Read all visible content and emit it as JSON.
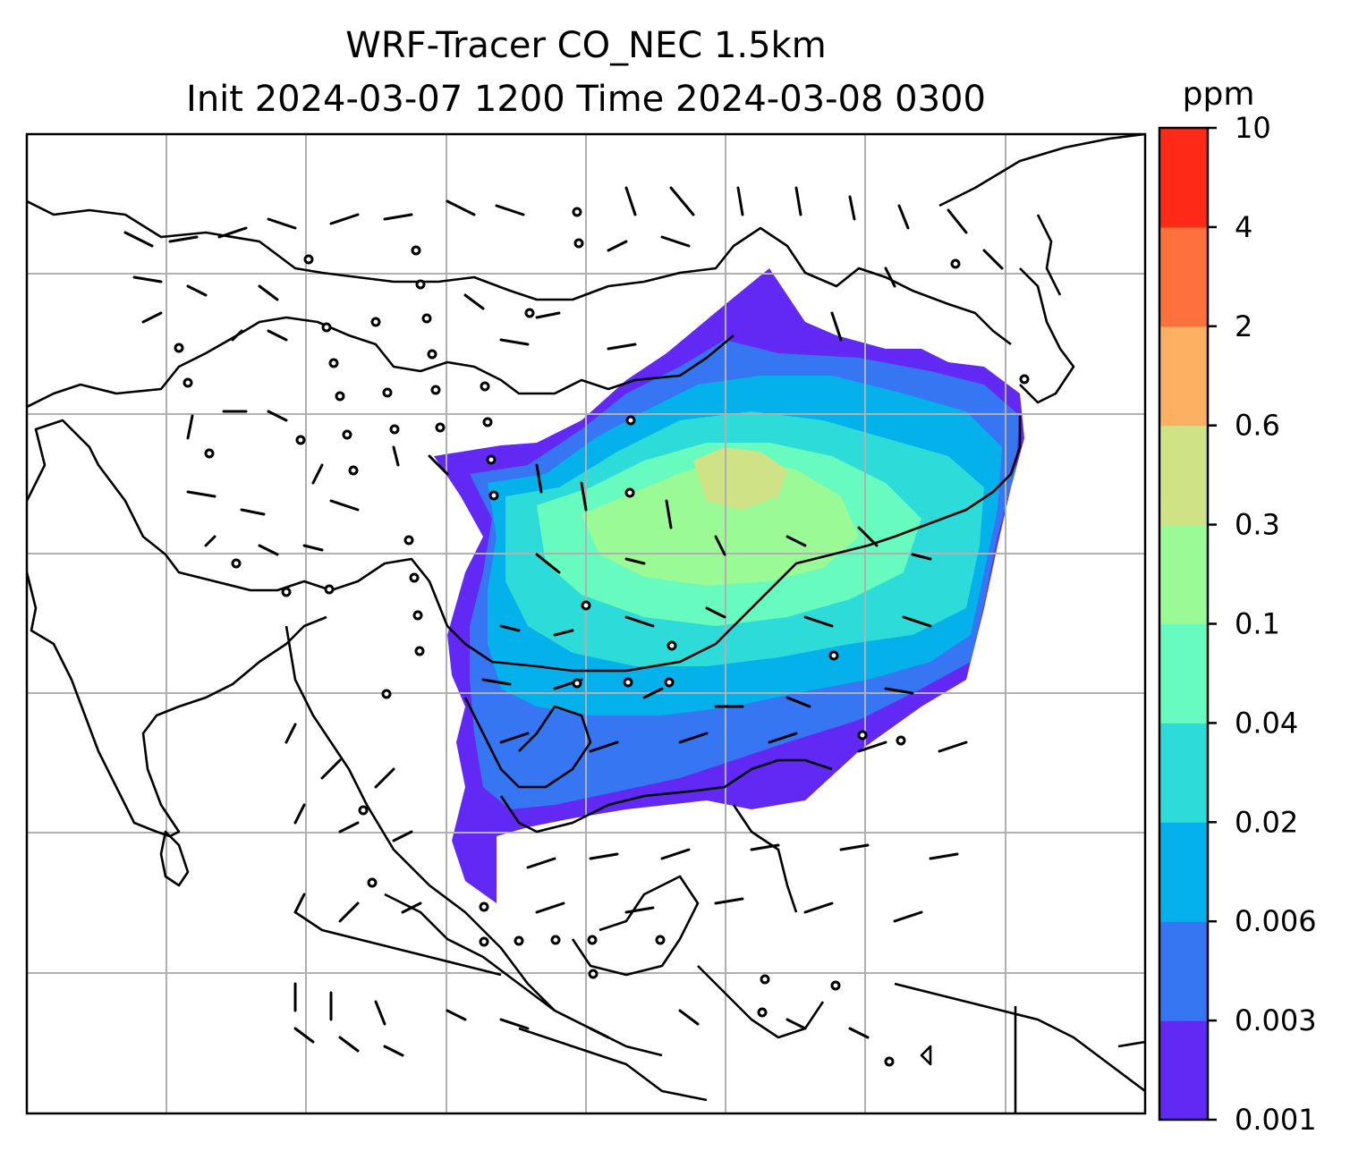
{
  "title": {
    "line1": "WRF-Tracer CO_NEC 1.5km",
    "line2": "Init 2024-03-07 1200 Time 2024-03-08 0300"
  },
  "colorbar": {
    "unit": "ppm",
    "ticks": [
      "0.001",
      "0.003",
      "0.006",
      "0.02",
      "0.04",
      "0.1",
      "0.3",
      "0.6",
      "2",
      "4",
      "10"
    ],
    "colors": [
      "#6229f5",
      "#3676f2",
      "#04b1eb",
      "#2ddcd8",
      "#68fbbf",
      "#99fa96",
      "#cfe285",
      "#fdaf62",
      "#fe703c",
      "#fe2a17"
    ]
  },
  "map": {
    "graticule": "gray grid lines",
    "overlay": [
      "tracer concentration shading",
      "wind barbs",
      "coastlines and borders"
    ]
  }
}
